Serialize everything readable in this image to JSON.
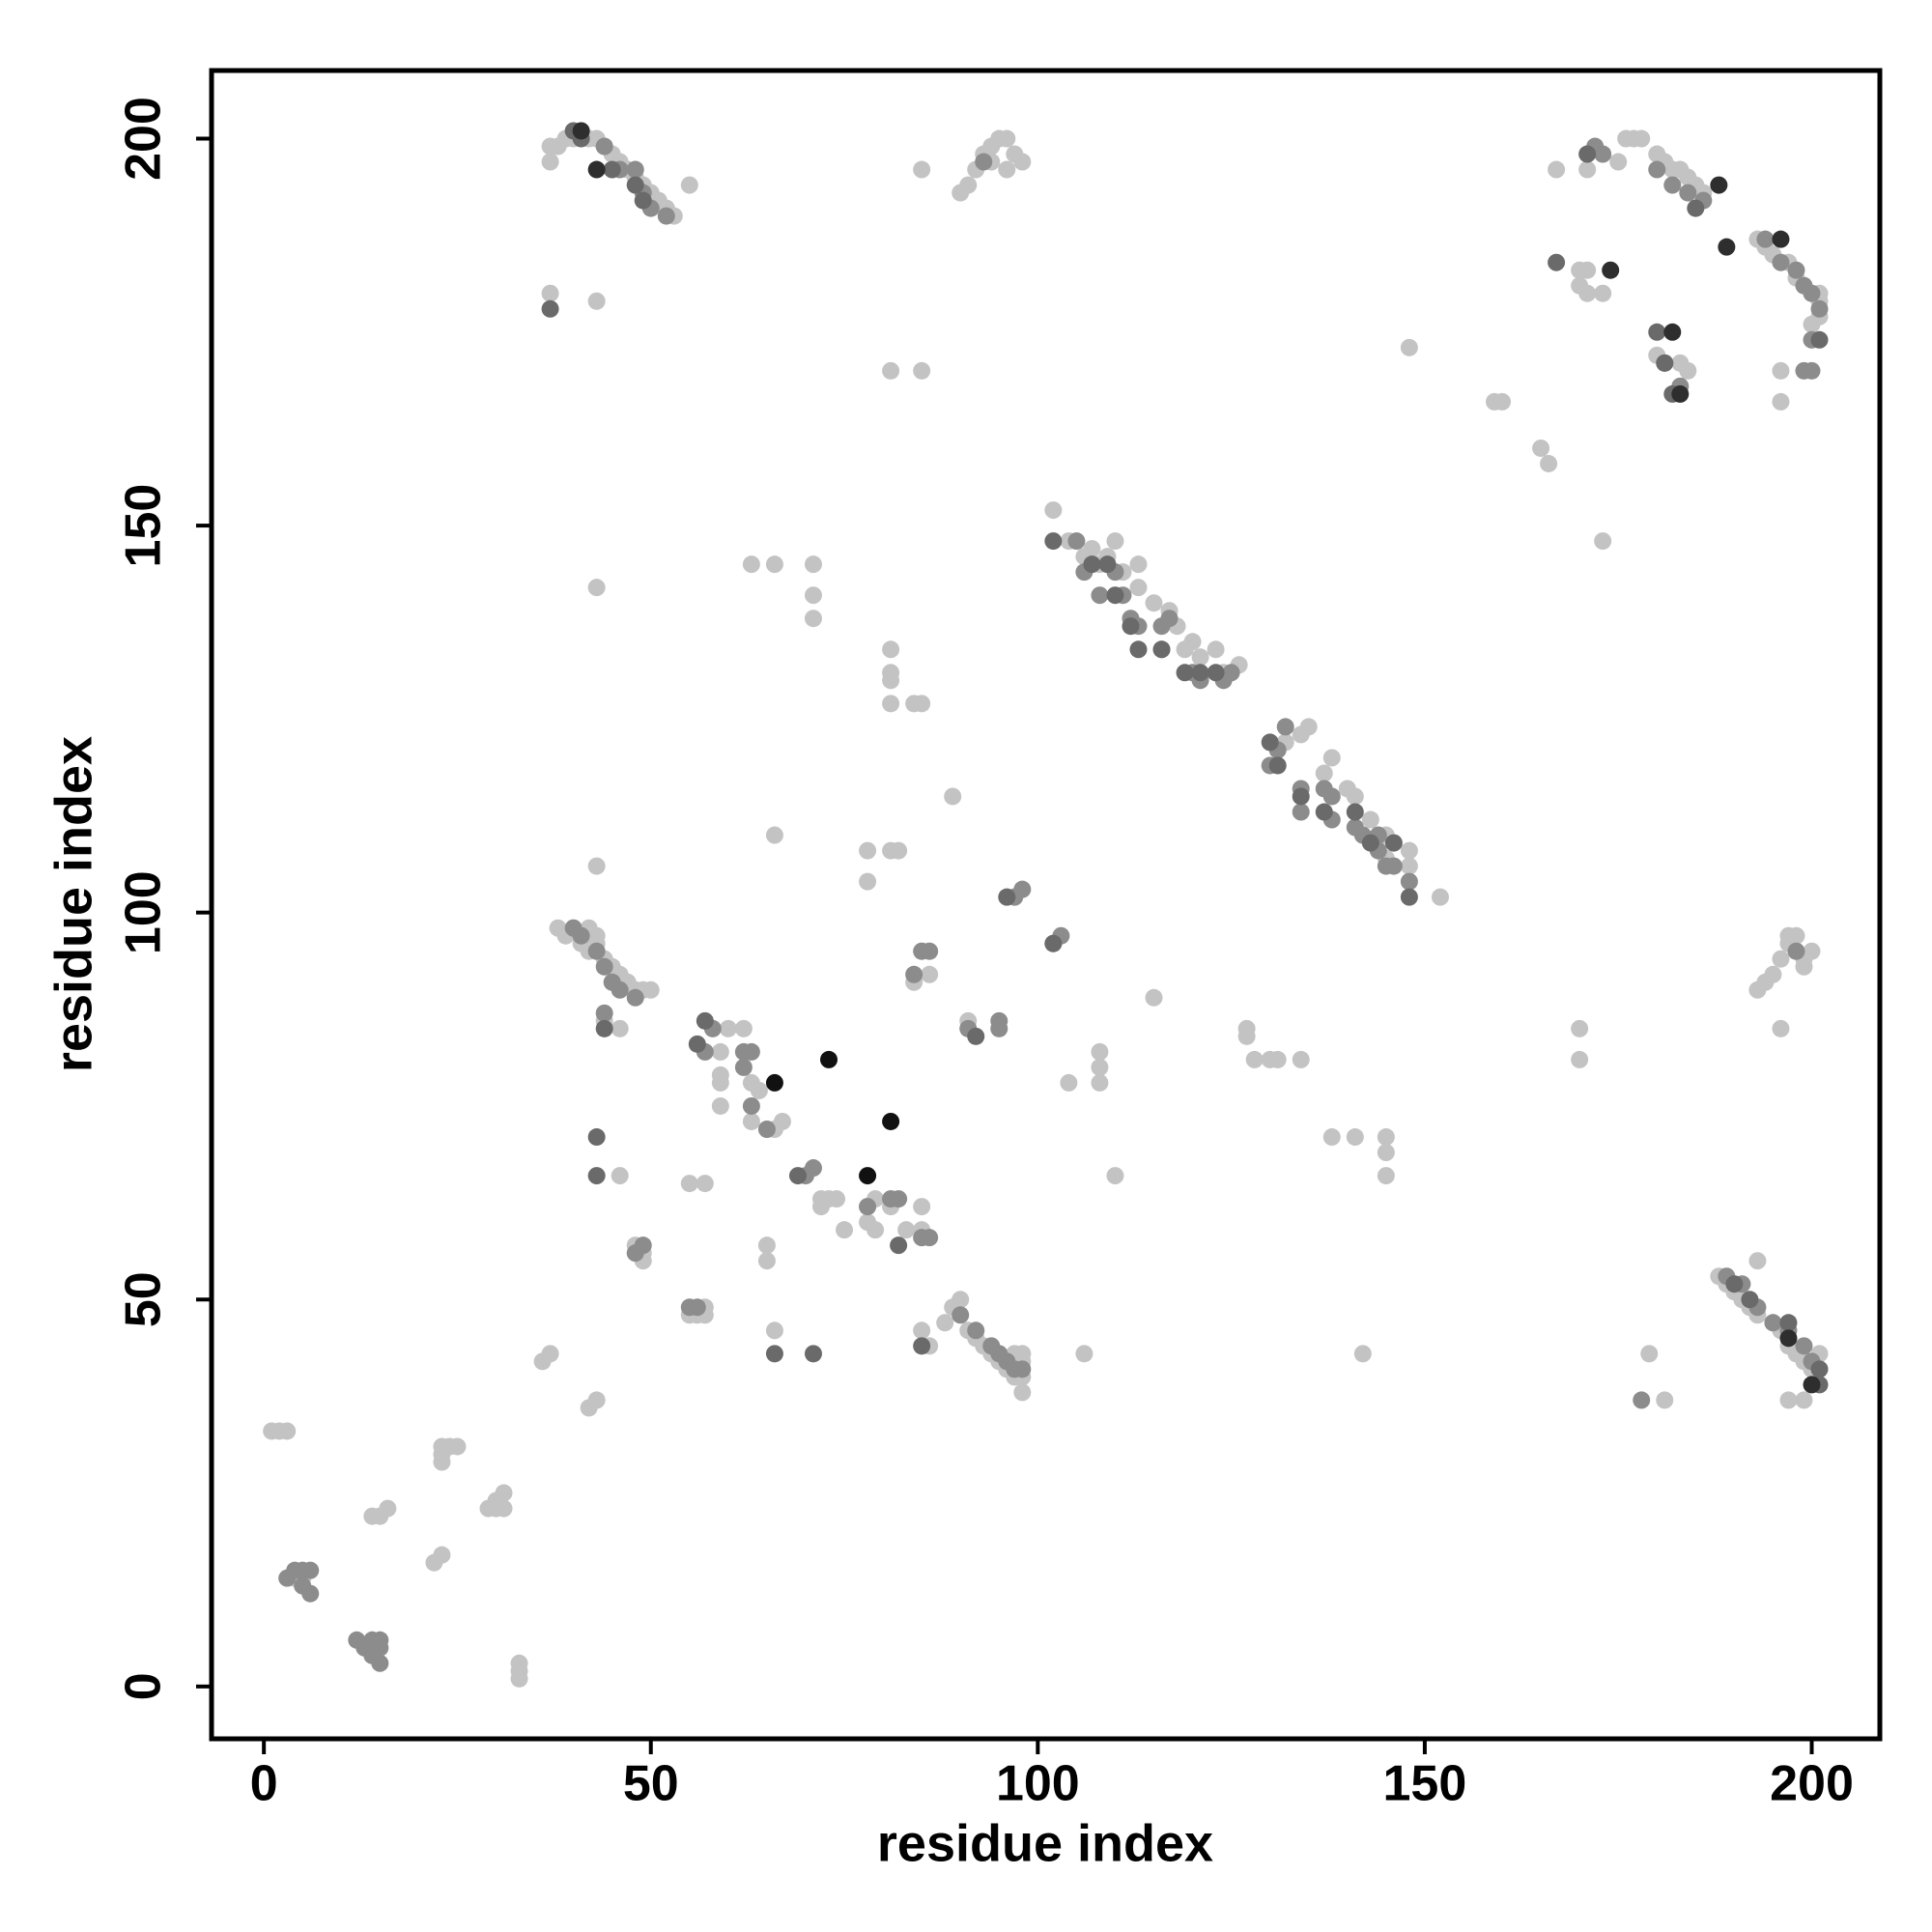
{
  "chart_data": {
    "type": "scatter",
    "xlabel": "residue index",
    "ylabel": "residue index",
    "xlim": [
      -6.76,
      208.8
    ],
    "ylim": [
      -6.76,
      208.8
    ],
    "xticks": [
      0,
      50,
      100,
      150,
      200
    ],
    "yticks": [
      0,
      50,
      100,
      150,
      200
    ],
    "series": [
      {
        "color": "#c3c3c3",
        "x": [
          1,
          2,
          3,
          4,
          5,
          14,
          15,
          16,
          22,
          23,
          23,
          23,
          24,
          25,
          23,
          29,
          30,
          31,
          31,
          30,
          33,
          33,
          33,
          36,
          37,
          42,
          43,
          38,
          39,
          40,
          41,
          42,
          43,
          44,
          45,
          46,
          47,
          48,
          49,
          50,
          44,
          46,
          42,
          43,
          46,
          55,
          57,
          48,
          49,
          49,
          55,
          56,
          57,
          57,
          62,
          59,
          60,
          59,
          59,
          59,
          63,
          63,
          64,
          66,
          67,
          65,
          65,
          66,
          72,
          72,
          73,
          74,
          75,
          78,
          78,
          79,
          79,
          81,
          83,
          85,
          85,
          85,
          86,
          88,
          89,
          90,
          91,
          92,
          93,
          94,
          95,
          96,
          97,
          98,
          98,
          97,
          98,
          98,
          91,
          84,
          86,
          63,
          66,
          71,
          71,
          71,
          66,
          78,
          81,
          82,
          78,
          81,
          81,
          81,
          81,
          84,
          85,
          89,
          43,
          43,
          37,
          43,
          37,
          37,
          38,
          39,
          40,
          42,
          43,
          44,
          45,
          46,
          47,
          48,
          49,
          50,
          51,
          52,
          55,
          53,
          81,
          85,
          85,
          90,
          91,
          92,
          93,
          94,
          95,
          96,
          97,
          96,
          98,
          94,
          102,
          104,
          106,
          107,
          108,
          109,
          110,
          111,
          113,
          113,
          115,
          117,
          118,
          119,
          120,
          121,
          123,
          124,
          126,
          127,
          127,
          128,
          130,
          131,
          134,
          131,
          132,
          134,
          135,
          137,
          138,
          140,
          141,
          143,
          145,
          145,
          146,
          148,
          148,
          152,
          104,
          108,
          108,
          108,
          106,
          110,
          115,
          138,
          141,
          145,
          145,
          145,
          142,
          148,
          173,
          159,
          160,
          165,
          166,
          167,
          171,
          170,
          171,
          171,
          170,
          170,
          170,
          173,
          175,
          176,
          177,
          178,
          180,
          181,
          182,
          183,
          184,
          185,
          186,
          183,
          184,
          179,
          181,
          180,
          188,
          189,
          190,
          191,
          192,
          193,
          195,
          196,
          197,
          198,
          199,
          200,
          201,
          197,
          199,
          193,
          196,
          193,
          194,
          195,
          196,
          197,
          198,
          199,
          200,
          197,
          198,
          199,
          196,
          196,
          201,
          201,
          200,
          201,
          197,
          198,
          193,
          194,
          195
        ],
        "values": [
          33,
          33,
          33,
          14,
          14,
          22,
          22,
          23,
          16,
          17,
          29,
          30,
          31,
          31,
          31,
          23,
          24,
          25,
          23,
          23,
          1,
          2,
          3,
          42,
          43,
          36,
          37,
          98,
          97,
          98,
          96,
          95,
          96,
          94,
          93,
          92,
          91,
          90,
          90,
          90,
          86,
          85,
          98,
          97,
          66,
          65,
          65,
          57,
          56,
          55,
          48,
          48,
          48,
          49,
          85,
          82,
          85,
          79,
          78,
          75,
          78,
          73,
          77,
          72,
          73,
          57,
          55,
          46,
          63,
          62,
          63,
          63,
          59,
          62,
          60,
          63,
          59,
          62,
          59,
          62,
          59,
          46,
          44,
          47,
          49,
          50,
          46,
          45,
          44,
          43,
          42,
          41,
          40,
          40,
          42,
          43,
          43,
          38,
          86,
          91,
          92,
          145,
          145,
          145,
          141,
          138,
          110,
          108,
          108,
          108,
          104,
          134,
          131,
          130,
          127,
          127,
          127,
          115,
          142,
          106,
          180,
          179,
          197,
          199,
          199,
          200,
          200,
          200,
          200,
          199,
          198,
          197,
          196,
          195,
          194,
          193,
          192,
          191,
          194,
          190,
          170,
          170,
          196,
          193,
          194,
          196,
          198,
          199,
          200,
          200,
          198,
          196,
          197,
          197,
          152,
          148,
          146,
          147,
          145,
          146,
          148,
          144,
          145,
          142,
          140,
          139,
          137,
          134,
          135,
          133,
          134,
          131,
          132,
          85,
          84,
          81,
          81,
          81,
          81,
          119,
          122,
          123,
          124,
          118,
          120,
          116,
          115,
          112,
          110,
          107,
          109,
          106,
          108,
          102,
          78,
          80,
          82,
          78,
          43,
          66,
          89,
          71,
          71,
          71,
          69,
          66,
          43,
          173,
          148,
          166,
          166,
          160,
          158,
          196,
          196,
          183,
          183,
          180,
          181,
          85,
          81,
          180,
          197,
          200,
          200,
          200,
          198,
          197,
          196,
          196,
          195,
          194,
          193,
          171,
          170,
          43,
          37,
          172,
          53,
          52,
          51,
          50,
          49,
          48,
          47,
          46,
          44,
          43,
          42,
          41,
          43,
          37,
          37,
          55,
          85,
          90,
          91,
          92,
          94,
          96,
          95,
          94,
          95,
          97,
          97,
          93,
          166,
          170,
          179,
          177,
          176,
          180,
          184,
          182,
          187,
          186,
          185
        ]
      },
      {
        "color": "#8c8c8c",
        "x": [
          4,
          5,
          6,
          5,
          6,
          3,
          12,
          13,
          14,
          15,
          15,
          15,
          14,
          40,
          41,
          43,
          44,
          45,
          46,
          48,
          44,
          49,
          48,
          55,
          56,
          57,
          58,
          62,
          63,
          62,
          63,
          65,
          70,
          71,
          78,
          81,
          82,
          85,
          86,
          90,
          92,
          94,
          95,
          96,
          97,
          98,
          85,
          86,
          84,
          91,
          95,
          95,
          97,
          98,
          102,
          103,
          44,
          46,
          48,
          49,
          50,
          52,
          93,
          105,
          106,
          108,
          110,
          111,
          112,
          113,
          116,
          117,
          116,
          120,
          121,
          124,
          125,
          130,
          131,
          132,
          134,
          134,
          137,
          138,
          138,
          141,
          142,
          144,
          144,
          145,
          146,
          148,
          172,
          173,
          180,
          182,
          184,
          186,
          194,
          196,
          198,
          199,
          200,
          201,
          200,
          199,
          200,
          181,
          183,
          189,
          191,
          193,
          195,
          197,
          199,
          200,
          178,
          198
        ],
        "values": [
          15,
          15,
          15,
          13,
          12,
          14,
          6,
          5,
          4,
          3,
          6,
          5,
          6,
          98,
          97,
          95,
          93,
          91,
          90,
          89,
          87,
          57,
          56,
          49,
          49,
          82,
          85,
          82,
          82,
          80,
          75,
          72,
          66,
          67,
          62,
          63,
          63,
          58,
          58,
          48,
          46,
          44,
          43,
          42,
          41,
          41,
          95,
          95,
          92,
          85,
          86,
          85,
          102,
          103,
          96,
          97,
          199,
          196,
          196,
          193,
          191,
          190,
          197,
          148,
          144,
          141,
          144,
          141,
          138,
          137,
          137,
          138,
          134,
          131,
          130,
          130,
          131,
          119,
          121,
          124,
          116,
          113,
          116,
          115,
          112,
          111,
          110,
          108,
          110,
          106,
          106,
          104,
          199,
          198,
          196,
          194,
          193,
          192,
          187,
          184,
          183,
          181,
          180,
          178,
          174,
          170,
          170,
          171,
          168,
          53,
          52,
          49,
          47,
          46,
          44,
          42,
          37,
          95
        ]
      },
      {
        "color": "#6a6a6a",
        "x": [
          43,
          43,
          44,
          57,
          56,
          66,
          71,
          69,
          82,
          85,
          92,
          96,
          102,
          102,
          107,
          109,
          110,
          112,
          113,
          116,
          119,
          121,
          123,
          130,
          131,
          134,
          137,
          141,
          143,
          146,
          148,
          40,
          41,
          45,
          48,
          49,
          37,
          167,
          171,
          180,
          181,
          185,
          197,
          201,
          201,
          201,
          182,
          190,
          192
        ],
        "values": [
          71,
          66,
          85,
          86,
          83,
          43,
          43,
          66,
          57,
          44,
          84,
          102,
          96,
          148,
          145,
          145,
          141,
          137,
          134,
          134,
          131,
          131,
          131,
          122,
          119,
          115,
          113,
          113,
          109,
          109,
          102,
          201,
          200,
          196,
          194,
          192,
          178,
          184,
          198,
          175,
          171,
          191,
          47,
          41,
          39,
          174,
          167,
          52,
          50
        ]
      },
      {
        "color": "#2e2e2e",
        "x": [
          41,
          43,
          174,
          188,
          196,
          182,
          183,
          200,
          197,
          189
        ],
        "values": [
          201,
          196,
          183,
          194,
          187,
          175,
          167,
          39,
          45,
          186
        ]
      },
      {
        "color": "#111111",
        "x": [
          66,
          73,
          81,
          78
        ],
        "values": [
          78,
          81,
          73,
          66
        ]
      }
    ]
  }
}
